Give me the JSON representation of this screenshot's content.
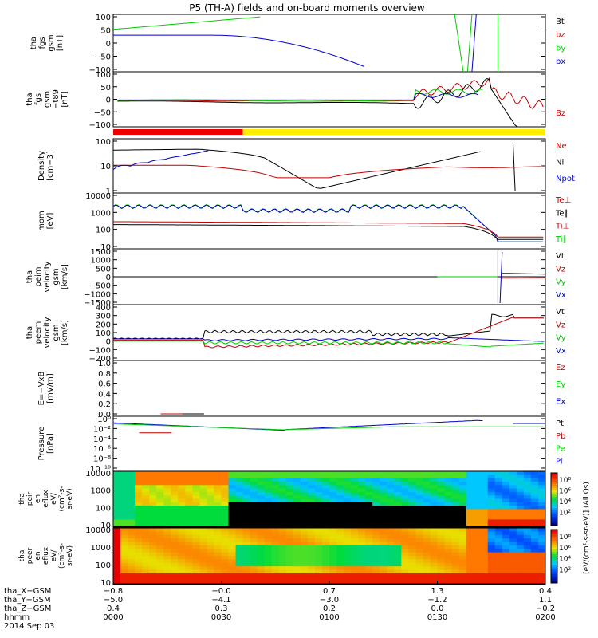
{
  "title": "P5 (TH-A) fields and on-board moments overview",
  "date_label": "2014 Sep 03",
  "colors": {
    "black": "#000000",
    "red": "#c00000",
    "green": "#00cc00",
    "blue": "#0000cc",
    "orange": "#ff6600",
    "yellow": "#ffee00",
    "mode_red": "#ee0000"
  },
  "panels": [
    {
      "id": "fgs",
      "ylabel_lines": [
        "tha",
        "fgs",
        "gsm",
        "[nT]"
      ],
      "ticks": [
        "100",
        "50",
        "0",
        "−50",
        "−100"
      ],
      "legend": [
        {
          "text": "Bt",
          "color": "#000000"
        },
        {
          "text": "bz",
          "color": "#c00000"
        },
        {
          "text": "by",
          "color": "#00cc00"
        },
        {
          "text": "bx",
          "color": "#0000cc"
        }
      ]
    },
    {
      "id": "fgl",
      "ylabel_lines": [
        "tha",
        "fgs",
        "gsm",
        "−t89",
        "[nT]"
      ],
      "ticks": [
        "100",
        "50",
        "0",
        "−50",
        "−100"
      ],
      "legend": [
        {
          "text": "Bz",
          "color": "#c00000"
        }
      ]
    },
    {
      "id": "density",
      "ylabel_lines": [
        "Density",
        "[cm−3]"
      ],
      "ticks": [
        "100",
        "10",
        "1"
      ],
      "legend": [
        {
          "text": "Ne",
          "color": "#c00000"
        },
        {
          "text": "Ni",
          "color": "#000000"
        },
        {
          "text": "Npot",
          "color": "#0000cc"
        }
      ]
    },
    {
      "id": "temp",
      "ylabel_lines": [
        "mom",
        "[eV]"
      ],
      "ticks": [
        "10000",
        "1000",
        "100",
        "10"
      ],
      "legend": [
        {
          "text": "Te⊥",
          "color": "#c00000"
        },
        {
          "text": "Te∥",
          "color": "#000000"
        },
        {
          "text": "Ti⊥",
          "color": "#c00000"
        },
        {
          "text": "Ti∥",
          "color": "#00cc00"
        }
      ]
    },
    {
      "id": "peim",
      "ylabel_lines": [
        "tha",
        "peim",
        "velocity",
        "gsm",
        "[km/s]"
      ],
      "ticks": [
        "1500",
        "1000",
        "500",
        "0",
        "−500",
        "−1000",
        "−1500"
      ],
      "legend": [
        {
          "text": "Vt",
          "color": "#000000"
        },
        {
          "text": "Vz",
          "color": "#c00000"
        },
        {
          "text": "Vy",
          "color": "#00cc00"
        },
        {
          "text": "Vx",
          "color": "#0000cc"
        }
      ]
    },
    {
      "id": "peem",
      "ylabel_lines": [
        "tha",
        "peem",
        "velocity",
        "gsm",
        "[km/s]"
      ],
      "ticks": [
        "400",
        "300",
        "200",
        "100",
        "0",
        "−100",
        "−200"
      ],
      "legend": [
        {
          "text": "Vt",
          "color": "#000000"
        },
        {
          "text": "Vz",
          "color": "#c00000"
        },
        {
          "text": "Vy",
          "color": "#00cc00"
        },
        {
          "text": "Vx",
          "color": "#0000cc"
        }
      ]
    },
    {
      "id": "efield",
      "ylabel_lines": [
        "E=−VxB",
        "[mV/m]"
      ],
      "ticks": [
        "1.0",
        "0.8",
        "0.6",
        "0.4",
        "0.2",
        "0.0"
      ],
      "legend": [
        {
          "text": "Ez",
          "color": "#c00000"
        },
        {
          "text": "Ey",
          "color": "#00cc00"
        },
        {
          "text": "Ex",
          "color": "#0000cc"
        }
      ]
    },
    {
      "id": "pressure",
      "ylabel_lines": [
        "Pressure",
        "[nPa]"
      ],
      "ticks": [
        "10⁰",
        "10⁻²",
        "10⁻⁴",
        "10⁻⁶",
        "10⁻⁸",
        "10⁻¹⁰"
      ],
      "legend": [
        {
          "text": "Pt",
          "color": "#000000"
        },
        {
          "text": "Pb",
          "color": "#c00000"
        },
        {
          "text": "Pe",
          "color": "#00cc00"
        },
        {
          "text": "Pi",
          "color": "#0000cc"
        }
      ]
    },
    {
      "id": "peir",
      "ylabel_lines": [
        "tha",
        "peir",
        "en",
        "eflux",
        "eV/",
        "(cm²-s-",
        "sr-eV)"
      ],
      "ticks": [
        "10000",
        "1000",
        "100",
        "10"
      ],
      "legend": []
    },
    {
      "id": "peer",
      "ylabel_lines": [
        "tha",
        "peer",
        "en",
        "eflux",
        "eV/",
        "(cm²-s-",
        "sr-eV)"
      ],
      "ticks": [
        "10000",
        "1000",
        "100",
        "10"
      ],
      "legend": []
    }
  ],
  "colorbars": [
    {
      "ticks": [
        "10⁸",
        "10⁶",
        "10⁴",
        "10²"
      ]
    },
    {
      "ticks": [
        "10⁸",
        "10⁶",
        "10⁴",
        "10²"
      ]
    }
  ],
  "colorbar_label": "[eV/(cm²-s-sr-eV)] (All Qs)",
  "axis_rows": [
    {
      "label": "tha_X−GSM",
      "values": [
        "−0.8",
        "−0.0",
        "0.7",
        "1.3",
        "0.4"
      ]
    },
    {
      "label": "tha_Y−GSM",
      "values": [
        "−5.0",
        "−4.1",
        "−3.0",
        "−1.2",
        "1.1"
      ]
    },
    {
      "label": "tha_Z−GSM",
      "values": [
        "0.4",
        "0.3",
        "0.2",
        "0.0",
        "−0.2"
      ]
    },
    {
      "label": "hhmm",
      "values": [
        "0000",
        "0030",
        "0100",
        "0130",
        "0200"
      ]
    }
  ],
  "chart_data": {
    "type": "line",
    "title": "P5 (TH-A) fields and on-board moments overview",
    "x_unit": "hhmm",
    "x_ticks": [
      "0000",
      "0030",
      "0100",
      "0130",
      "0200"
    ],
    "time_range_hours": [
      0,
      2
    ],
    "series": [
      {
        "panel": "fgs",
        "name": "bx",
        "x": [
          0.0,
          0.5,
          0.8,
          1.0,
          1.1
        ],
        "y": [
          30,
          25,
          0,
          -60,
          -100
        ]
      },
      {
        "panel": "fgs",
        "name": "by",
        "x": [
          0.0,
          0.3,
          0.5,
          0.65
        ],
        "y": [
          50,
          75,
          90,
          100
        ]
      },
      {
        "panel": "density",
        "name": "Ni",
        "x": [
          0.0,
          0.4,
          0.7,
          0.9,
          1.2,
          1.5,
          1.72
        ],
        "y": [
          60,
          80,
          70,
          0.12,
          0.4,
          4,
          60
        ]
      },
      {
        "panel": "density",
        "name": "Ne",
        "x": [
          0.0,
          0.3,
          0.5,
          1.0,
          1.5,
          1.8,
          2.0
        ],
        "y": [
          6,
          6,
          2,
          0.8,
          1.5,
          4,
          4
        ]
      },
      {
        "panel": "density",
        "name": "Npot",
        "x": [
          0.0,
          0.3,
          0.45
        ],
        "y": [
          3,
          8,
          70
        ]
      },
      {
        "panel": "temp",
        "name": "Ti∥",
        "x": [
          0.0,
          0.5,
          1.0,
          1.6,
          1.75,
          2.0
        ],
        "y": [
          2000,
          1800,
          1000,
          1500,
          15,
          8
        ]
      },
      {
        "panel": "temp",
        "name": "Te⊥",
        "x": [
          0.0,
          0.5,
          1.0,
          1.6,
          1.75,
          2.0
        ],
        "y": [
          180,
          150,
          150,
          140,
          15,
          20
        ]
      },
      {
        "panel": "peem",
        "name": "Vt",
        "x": [
          0.0,
          0.4,
          0.5,
          1.0,
          1.5,
          1.7,
          1.9,
          2.0
        ],
        "y": [
          30,
          35,
          100,
          110,
          90,
          60,
          300,
          280
        ]
      },
      {
        "panel": "peem",
        "name": "Vz",
        "x": [
          0.0,
          0.4,
          0.5,
          1.0,
          1.6,
          1.8,
          2.0
        ],
        "y": [
          0,
          -10,
          -90,
          -60,
          -10,
          200,
          270
        ]
      },
      {
        "panel": "pressure",
        "name": "Pt",
        "x": [
          0.0,
          0.5,
          0.8,
          1.2,
          1.7,
          2.0
        ],
        "y": [
          0.5,
          0.2,
          0.02,
          0.3,
          1.5,
          0.5
        ]
      },
      {
        "panel": "pressure",
        "name": "Pe",
        "x": [
          0.0,
          0.5,
          0.8,
          1.2,
          1.7,
          2.0
        ],
        "y": [
          0.3,
          0.1,
          0.015,
          0.05,
          0.05,
          0.05
        ]
      }
    ]
  }
}
